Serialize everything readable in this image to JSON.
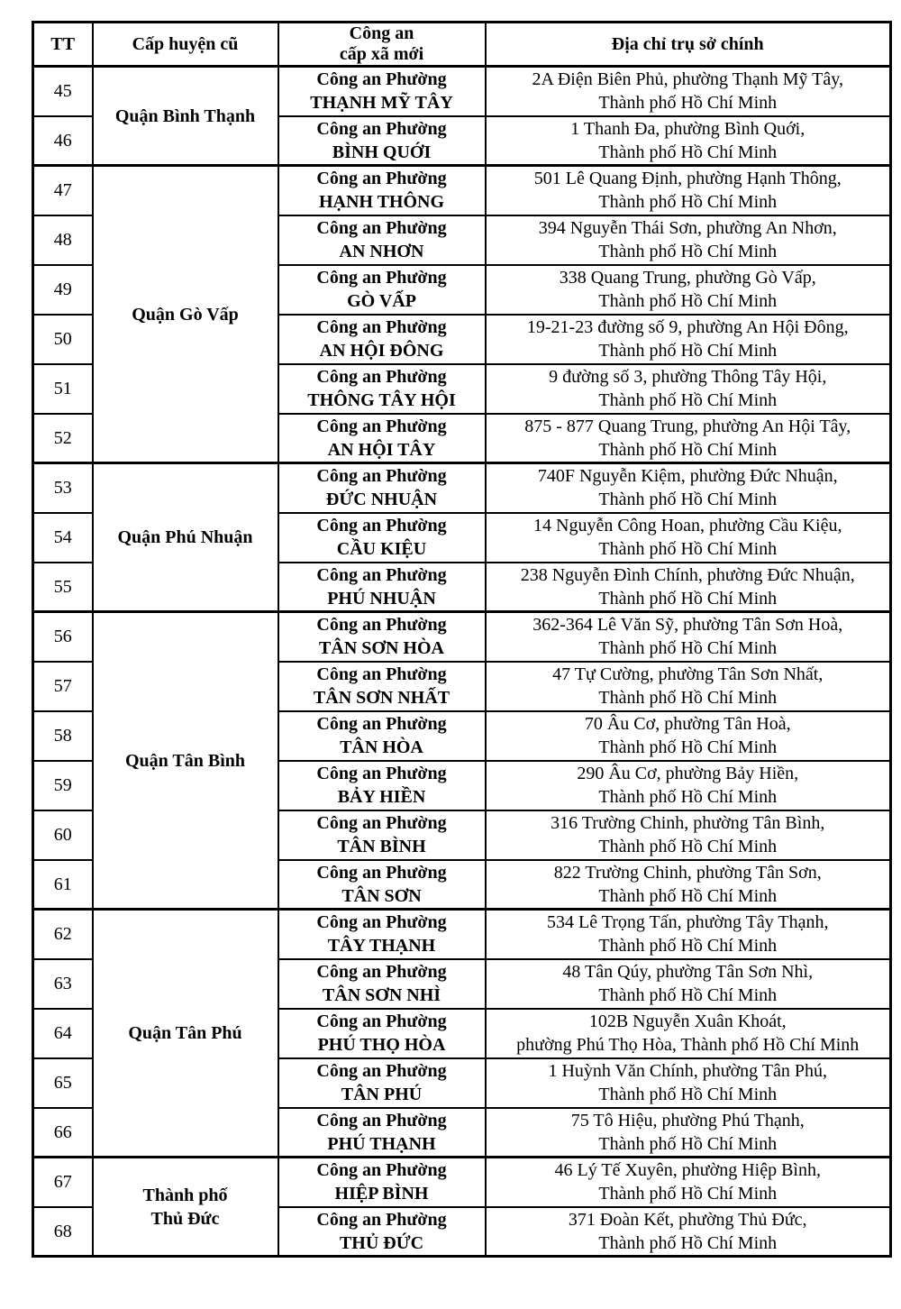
{
  "colors": {
    "border": "#000000",
    "text": "#000000",
    "background": "#ffffff"
  },
  "table": {
    "headers": {
      "tt": "TT",
      "old_district": "Cấp huyện cũ",
      "new_police_line1": "Công an",
      "new_police_line2": "cấp xã mới",
      "address": "Địa chỉ trụ sở chính"
    },
    "police_prefix": "Công an Phường",
    "groups": [
      {
        "district_lines": [
          "Quận Bình Thạnh"
        ],
        "rows": [
          {
            "tt": "45",
            "ward": "THẠNH MỸ TÂY",
            "addr": [
              "2A Điện Biên Phủ, phường Thạnh Mỹ Tây,",
              "Thành phố Hồ Chí Minh"
            ]
          },
          {
            "tt": "46",
            "ward": "BÌNH QUỚI",
            "addr": [
              "1 Thanh Đa, phường Bình Quới,",
              "Thành phố Hồ Chí Minh"
            ]
          }
        ]
      },
      {
        "district_lines": [
          "Quận Gò Vấp"
        ],
        "rows": [
          {
            "tt": "47",
            "ward": "HẠNH THÔNG",
            "addr": [
              "501 Lê Quang Định, phường Hạnh Thông,",
              "Thành phố Hồ Chí Minh"
            ]
          },
          {
            "tt": "48",
            "ward": "AN NHƠN",
            "addr": [
              "394 Nguyễn Thái Sơn, phường An Nhơn,",
              "Thành phố Hồ Chí Minh"
            ]
          },
          {
            "tt": "49",
            "ward": "GÒ VẤP",
            "addr": [
              "338 Quang Trung, phường Gò Vấp,",
              "Thành phố Hồ Chí Minh"
            ]
          },
          {
            "tt": "50",
            "ward": "AN HỘI ĐÔNG",
            "addr": [
              "19-21-23 đường số 9, phường An Hội Đông,",
              "Thành phố Hồ Chí Minh"
            ]
          },
          {
            "tt": "51",
            "ward": "THÔNG TÂY HỘI",
            "addr": [
              "9 đường số 3, phường Thông Tây Hội,",
              "Thành phố Hồ Chí Minh"
            ]
          },
          {
            "tt": "52",
            "ward": "AN HỘI TÂY",
            "addr": [
              "875 - 877 Quang Trung, phường An Hội Tây,",
              "Thành phố Hồ Chí Minh"
            ]
          }
        ]
      },
      {
        "district_lines": [
          "Quận Phú Nhuận"
        ],
        "rows": [
          {
            "tt": "53",
            "ward": "ĐỨC NHUẬN",
            "addr": [
              "740F Nguyễn Kiệm, phường Đức Nhuận,",
              "Thành phố Hồ Chí Minh"
            ]
          },
          {
            "tt": "54",
            "ward": "CẦU KIỆU",
            "addr": [
              "14 Nguyễn Công Hoan, phường Cầu Kiệu,",
              "Thành phố Hồ Chí Minh"
            ]
          },
          {
            "tt": "55",
            "ward": "PHÚ NHUẬN",
            "addr": [
              "238 Nguyễn Đình Chính, phường Đức Nhuận,",
              "Thành phố Hồ Chí Minh"
            ]
          }
        ]
      },
      {
        "district_lines": [
          "Quận Tân Bình"
        ],
        "rows": [
          {
            "tt": "56",
            "ward": "TÂN SƠN HÒA",
            "addr": [
              "362-364 Lê Văn Sỹ, phường Tân Sơn Hoà,",
              "Thành phố Hồ Chí Minh"
            ]
          },
          {
            "tt": "57",
            "ward": "TÂN SƠN NHẤT",
            "addr": [
              "47 Tự Cường, phường Tân Sơn Nhất,",
              "Thành phố Hồ Chí Minh"
            ]
          },
          {
            "tt": "58",
            "ward": "TÂN HÒA",
            "addr": [
              "70 Âu Cơ, phường Tân Hoà,",
              "Thành phố Hồ Chí Minh"
            ]
          },
          {
            "tt": "59",
            "ward": "BẢY HIỀN",
            "addr": [
              "290 Âu Cơ, phường Bảy Hiền,",
              "Thành phố Hồ Chí Minh"
            ]
          },
          {
            "tt": "60",
            "ward": "TÂN BÌNH",
            "addr": [
              "316 Trường Chinh, phường Tân Bình,",
              "Thành phố Hồ Chí Minh"
            ]
          },
          {
            "tt": "61",
            "ward": "TÂN SƠN",
            "addr": [
              "822 Trường Chinh, phường Tân Sơn,",
              "Thành phố Hồ Chí Minh"
            ]
          }
        ]
      },
      {
        "district_lines": [
          "Quận Tân Phú"
        ],
        "rows": [
          {
            "tt": "62",
            "ward": "TÂY THẠNH",
            "addr": [
              "534 Lê Trọng Tấn, phường Tây Thạnh,",
              "Thành phố Hồ Chí Minh"
            ]
          },
          {
            "tt": "63",
            "ward": "TÂN SƠN NHÌ",
            "addr": [
              "48 Tân Qúy, phường Tân Sơn Nhì,",
              "Thành phố Hồ Chí Minh"
            ]
          },
          {
            "tt": "64",
            "ward": "PHÚ THỌ HÒA",
            "addr": [
              "102B Nguyễn Xuân Khoát,",
              "phường Phú Thọ Hòa, Thành phố Hồ Chí Minh"
            ]
          },
          {
            "tt": "65",
            "ward": "TÂN PHÚ",
            "addr": [
              "1 Huỳnh Văn Chính, phường Tân Phú,",
              "Thành phố Hồ Chí Minh"
            ]
          },
          {
            "tt": "66",
            "ward": "PHÚ THẠNH",
            "addr": [
              "75 Tô Hiệu, phường Phú Thạnh,",
              "Thành phố Hồ Chí Minh"
            ]
          }
        ]
      },
      {
        "district_lines": [
          "Thành phố",
          "Thủ Đức"
        ],
        "rows": [
          {
            "tt": "67",
            "ward": "HIỆP BÌNH",
            "addr": [
              "46 Lý Tế Xuyên, phường Hiệp Bình,",
              "Thành phố Hồ Chí Minh"
            ]
          },
          {
            "tt": "68",
            "ward": "THỦ ĐỨC",
            "addr": [
              "371 Đoàn Kết, phường Thủ Đức,",
              "Thành phố Hồ Chí Minh"
            ]
          }
        ]
      }
    ]
  }
}
